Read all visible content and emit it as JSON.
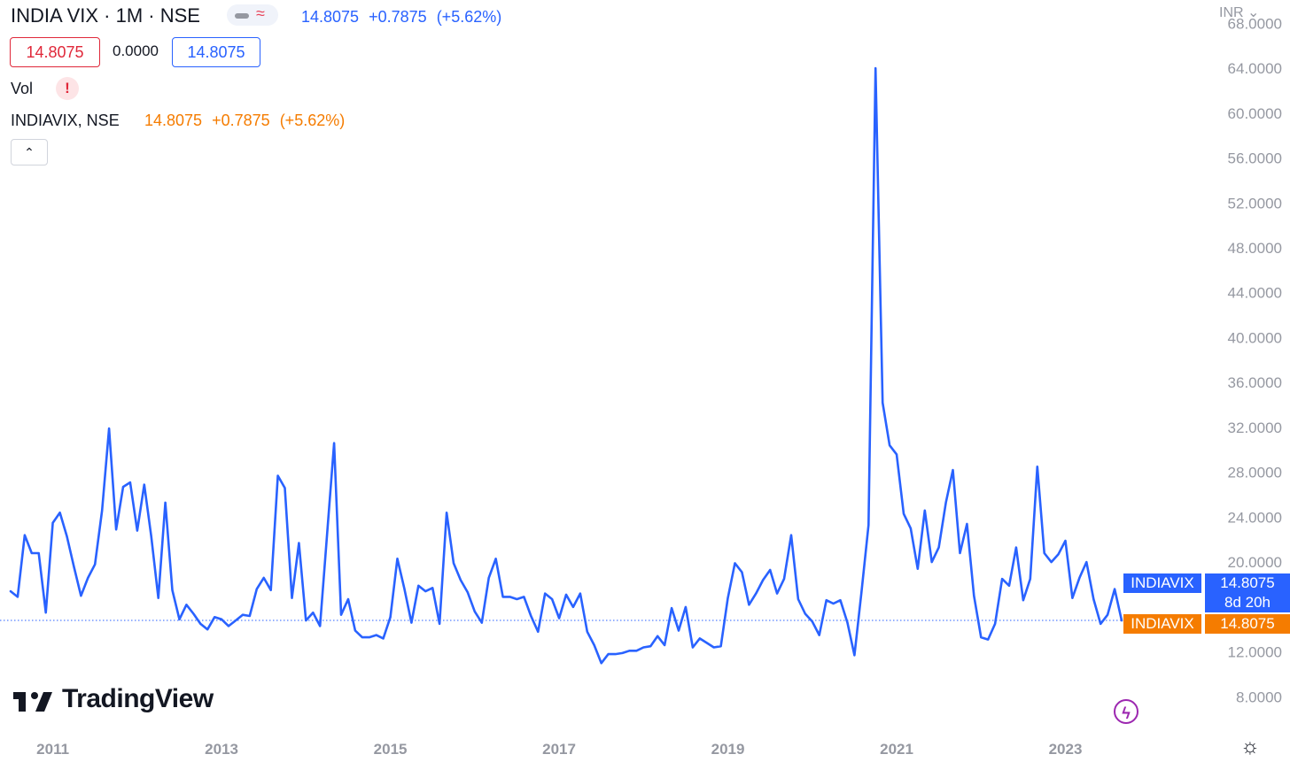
{
  "header": {
    "symbol_title": "INDIA VIX · 1M · NSE",
    "toggle_icon": "approx-icon",
    "last_price": "14.8075",
    "change": "+0.7875",
    "change_pct": "(+5.62%)",
    "bid": "14.8075",
    "spread": "0.0000",
    "ask": "14.8075",
    "volume_label": "Vol",
    "alert_icon_glyph": "!",
    "overlay_symbol": "INDIAVIX, NSE",
    "overlay_price": "14.8075",
    "overlay_change": "+0.7875",
    "overlay_change_pct": "(+5.62%)",
    "currency": "INR"
  },
  "branding": {
    "logo_text": "TradingView"
  },
  "price_labels": {
    "main_symbol": "INDIAVIX",
    "main_price": "14.8075",
    "countdown": "8d 20h",
    "overlay_symbol": "INDIAVIX",
    "overlay_price": "14.8075"
  },
  "colors": {
    "main_line": "#2962ff",
    "overlay": "#f57c00",
    "negative": "#e0283a",
    "axis_text": "#9598a1"
  },
  "chart_data": {
    "type": "line",
    "title": "INDIA VIX · 1M · NSE",
    "series": [
      {
        "name": "INDIAVIX, NSE",
        "x_start": "2010-07",
        "frequency": "monthly",
        "values": [
          17.4,
          16.9,
          22.4,
          20.8,
          20.8,
          15.5,
          23.5,
          24.4,
          22.3,
          19.6,
          17.0,
          18.6,
          19.8,
          24.6,
          31.9,
          22.9,
          26.7,
          27.1,
          22.8,
          26.9,
          22.3,
          16.8,
          25.3,
          17.5,
          14.9,
          16.2,
          15.4,
          14.5,
          14.0,
          15.1,
          14.9,
          14.3,
          14.8,
          15.3,
          15.2,
          17.6,
          18.6,
          17.5,
          27.7,
          26.6,
          16.8,
          21.7,
          14.8,
          15.5,
          14.3,
          22.5,
          30.6,
          15.3,
          16.7,
          13.9,
          13.3,
          13.3,
          13.5,
          13.2,
          15.1,
          20.3,
          17.6,
          14.6,
          17.9,
          17.4,
          17.7,
          14.5,
          24.4,
          19.9,
          18.4,
          17.3,
          15.6,
          14.6,
          18.6,
          20.3,
          16.9,
          16.9,
          16.7,
          16.9,
          15.2,
          13.8,
          17.2,
          16.7,
          15.0,
          17.1,
          16.0,
          17.2,
          13.8,
          12.6,
          11.0,
          11.8,
          11.8,
          11.9,
          12.1,
          12.1,
          12.4,
          12.5,
          13.4,
          12.6,
          15.9,
          13.9,
          16.0,
          12.4,
          13.2,
          12.8,
          12.4,
          12.5,
          16.8,
          19.9,
          19.1,
          16.2,
          17.2,
          18.4,
          19.3,
          17.2,
          18.5,
          22.4,
          16.7,
          15.4,
          14.7,
          13.5,
          16.6,
          16.3,
          16.6,
          14.6,
          11.7,
          17.3,
          23.3,
          64.0,
          34.2,
          30.4,
          29.6,
          24.3,
          23.0,
          19.4,
          24.6,
          20.0,
          21.3,
          25.3,
          28.2,
          20.8,
          23.4,
          17.0,
          13.3,
          13.1,
          14.5,
          18.5,
          17.9,
          21.3,
          16.6,
          18.5,
          28.5,
          20.8,
          20.0,
          20.7,
          21.9,
          16.8,
          18.6,
          20.0,
          16.7,
          14.5,
          15.3,
          17.6,
          14.8
        ]
      }
    ],
    "x_tick_labels": [
      "2011",
      "2013",
      "2015",
      "2017",
      "2019",
      "2021",
      "2023"
    ],
    "y_tick_labels": [
      "8.0000",
      "12.0000",
      "20.0000",
      "24.0000",
      "28.0000",
      "32.0000",
      "36.0000",
      "40.0000",
      "44.0000",
      "48.0000",
      "52.0000",
      "56.0000",
      "60.0000",
      "64.0000",
      "68.0000"
    ],
    "y_ticks": [
      8,
      12,
      20,
      24,
      28,
      32,
      36,
      40,
      44,
      48,
      52,
      56,
      60,
      64,
      68
    ],
    "x_ticks": [
      "2011-01",
      "2013-01",
      "2015-01",
      "2017-01",
      "2019-01",
      "2021-01",
      "2023-01"
    ],
    "ylim": [
      7,
      68.5
    ],
    "last_value_line": 14.8075,
    "grid": false
  }
}
